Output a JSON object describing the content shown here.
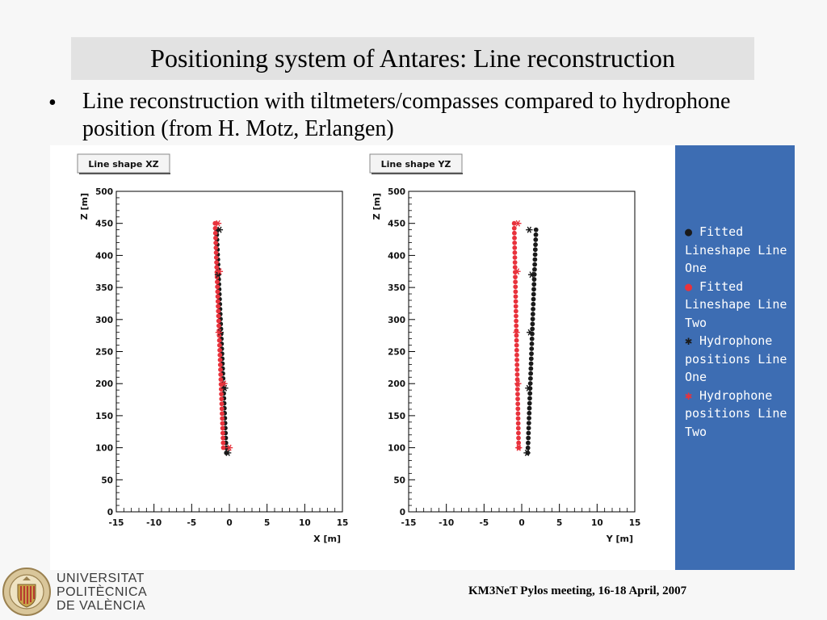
{
  "slide": {
    "title": "Positioning system of Antares: Line reconstruction",
    "bullet": "Line reconstruction with tiltmeters/compasses compared to hydrophone position (from H. Motz, Erlangen)",
    "footer": "KM3NeT Pylos meeting, 16-18 April, 2007",
    "logo_lines": [
      "UNIVERSITAT",
      "POLITÈCNICA",
      "DE VALÈNCIA"
    ]
  },
  "legend": [
    {
      "marker": "●",
      "color": "#1a1a1a",
      "text": "Fitted Lineshape Line One"
    },
    {
      "marker": "●",
      "color": "#e8323c",
      "text": "Fitted Lineshape Line Two"
    },
    {
      "marker": "✱",
      "color": "#1a1a1a",
      "text": "Hydrophone positions Line One"
    },
    {
      "marker": "✱",
      "color": "#e8323c",
      "text": "Hydrophone positions Line Two"
    }
  ],
  "colors": {
    "line_one": "#1a1a1a",
    "line_two": "#e8323c",
    "legend_bg": "#3d6db3"
  },
  "chart_data": [
    {
      "type": "scatter",
      "title": "Line shape XZ",
      "xlabel": "X [m]",
      "ylabel": "Z [m]",
      "xlim": [
        -15,
        15
      ],
      "ylim": [
        0,
        500
      ],
      "xticks": [
        -15,
        -10,
        -5,
        0,
        5,
        10,
        15
      ],
      "yticks": [
        0,
        50,
        100,
        150,
        200,
        250,
        300,
        350,
        400,
        450,
        500
      ],
      "series": [
        {
          "name": "Fitted Lineshape Line One",
          "marker": "dot",
          "color": "#1a1a1a",
          "x0": -1.7,
          "x1": -0.4,
          "z0": 440,
          "z1": 92,
          "n": 46
        },
        {
          "name": "Fitted Lineshape Line Two",
          "marker": "dot",
          "color": "#e8323c",
          "x0": -1.9,
          "x1": -0.8,
          "z0": 450,
          "z1": 100,
          "n": 47
        },
        {
          "name": "Hydrophone positions Line One",
          "marker": "star",
          "color": "#1a1a1a",
          "x": [
            -1.3,
            -1.5,
            -1.2,
            -0.6,
            -0.2
          ],
          "y": [
            440,
            370,
            280,
            193,
            92
          ]
        },
        {
          "name": "Hydrophone positions Line Two",
          "marker": "star",
          "color": "#e8323c",
          "x": [
            -1.5,
            -1.3,
            -1.4,
            -0.7,
            0.0
          ],
          "y": [
            450,
            375,
            280,
            200,
            100
          ]
        }
      ]
    },
    {
      "type": "scatter",
      "title": "Line shape YZ",
      "xlabel": "Y [m]",
      "ylabel": "Z [m]",
      "xlim": [
        -15,
        15
      ],
      "ylim": [
        0,
        500
      ],
      "xticks": [
        -15,
        -10,
        -5,
        0,
        5,
        10,
        15
      ],
      "yticks": [
        0,
        50,
        100,
        150,
        200,
        250,
        300,
        350,
        400,
        450,
        500
      ],
      "series": [
        {
          "name": "Fitted Lineshape Line One",
          "marker": "dot",
          "color": "#1a1a1a",
          "x0": 1.9,
          "x1": 0.8,
          "z0": 440,
          "z1": 92,
          "n": 46
        },
        {
          "name": "Fitted Lineshape Line Two",
          "marker": "dot",
          "color": "#e8323c",
          "x0": -1.0,
          "x1": -0.4,
          "z0": 450,
          "z1": 100,
          "n": 47
        },
        {
          "name": "Hydrophone positions Line One",
          "marker": "star",
          "color": "#1a1a1a",
          "x": [
            1.0,
            1.3,
            1.1,
            0.9,
            0.7
          ],
          "y": [
            440,
            370,
            280,
            193,
            92
          ]
        },
        {
          "name": "Hydrophone positions Line Two",
          "marker": "star",
          "color": "#e8323c",
          "x": [
            -0.5,
            -0.6,
            -0.7,
            -0.5,
            -0.4
          ],
          "y": [
            450,
            375,
            280,
            200,
            100
          ]
        }
      ]
    }
  ]
}
